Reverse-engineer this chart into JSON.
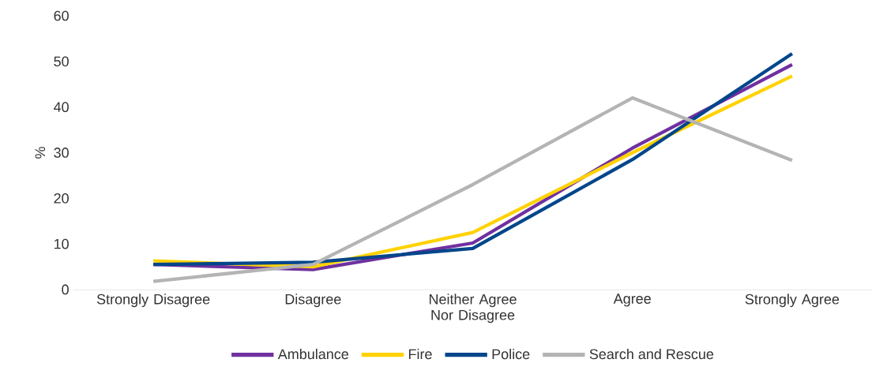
{
  "chart_data": {
    "type": "line",
    "ylabel": "%",
    "categories": [
      "Strongly Disagree",
      "Disagree",
      "Neither Agree Nor Disagree",
      "Agree",
      "Strongly Agree"
    ],
    "series": [
      {
        "name": "Ambulance",
        "color": "#7030a0",
        "values": [
          5.5,
          4.4,
          10.2,
          31,
          49.3
        ]
      },
      {
        "name": "Fire",
        "color": "#ffd200",
        "values": [
          6.3,
          5,
          12.5,
          30,
          46.8
        ]
      },
      {
        "name": "Police",
        "color": "#00468b",
        "values": [
          5.5,
          6,
          9,
          28.5,
          51.7
        ]
      },
      {
        "name": "Search and Rescue",
        "color": "#b4b4b4",
        "values": [
          1.8,
          5.5,
          23,
          42,
          28.3
        ]
      }
    ],
    "ylim": [
      0,
      60
    ],
    "yticks": [
      0,
      10,
      20,
      30,
      40,
      50,
      60
    ],
    "legend": "bottom"
  }
}
